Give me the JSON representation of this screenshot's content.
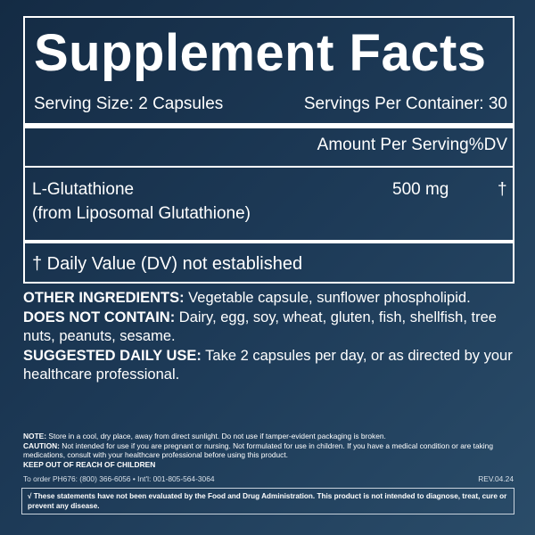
{
  "title": "Supplement Facts",
  "serving_size": "Serving Size: 2 Capsules",
  "servings_per_container": "Servings Per Container: 30",
  "amount_per_serving": "Amount Per Serving",
  "dv_header": "%DV",
  "ingredient": {
    "name": "L-Glutathione",
    "source": "(from Liposomal Glutathione)",
    "amount": "500 mg",
    "dv": "†"
  },
  "dv_note": "† Daily Value (DV) not established",
  "other_ingredients": {
    "label": "OTHER INGREDIENTS:",
    "text": " Vegetable capsule, sunflower phospholipid."
  },
  "does_not_contain": {
    "label": "DOES NOT CONTAIN:",
    "text": " Dairy, egg, soy, wheat, gluten, fish, shellfish, tree nuts, peanuts, sesame."
  },
  "suggested_use": {
    "label": "SUGGESTED DAILY USE:",
    "text": " Take 2 capsules per day, or as directed by your healthcare professional."
  },
  "note": {
    "label": "NOTE:",
    "text": " Store in a cool, dry place, away from direct sunlight. Do not use if tamper-evident packaging is broken."
  },
  "caution": {
    "label": "CAUTION:",
    "text": " Not intended for use if you are pregnant or nursing. Not formulated for use in children. If you have a medical condition or are taking medications, consult with your healthcare professional before using this product."
  },
  "keep_out": "KEEP OUT OF REACH OF CHILDREN",
  "order": "To order PH676: (800) 366-6056 • Int'l: 001-805-564-3064",
  "rev": "REV.04.24",
  "disclaimer": "√ These statements have not been evaluated by the Food and Drug Administration. This product is not intended to diagnose, treat, cure or prevent any disease."
}
